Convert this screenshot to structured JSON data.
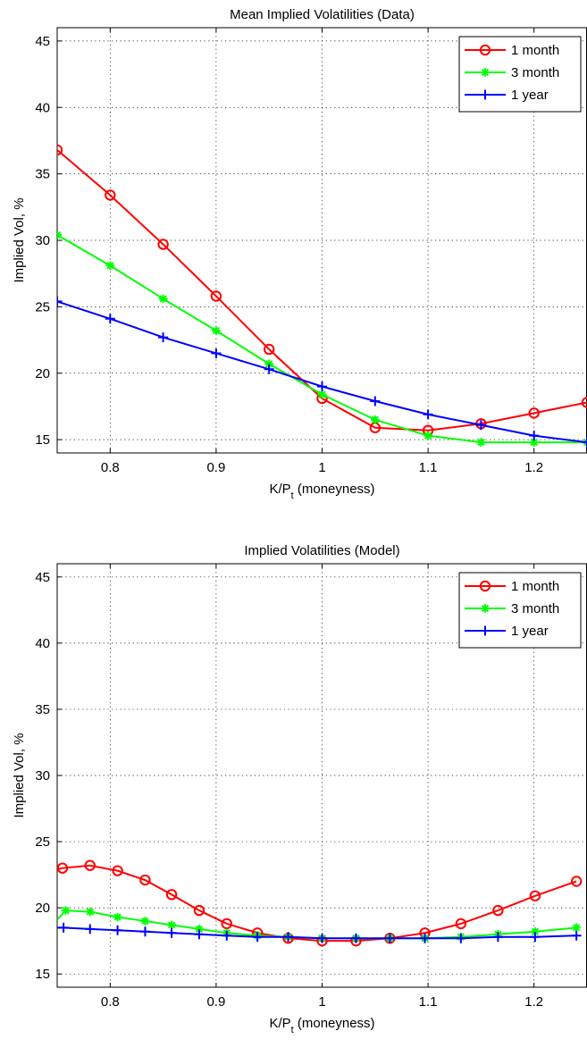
{
  "colors": {
    "one_month": "#ff0000",
    "three_month": "#00ff00",
    "one_year": "#0000ff",
    "grid": "#000000",
    "axes": "#000000"
  },
  "chart_data": [
    {
      "type": "line",
      "title": "Mean Implied Volatilities (Data)",
      "xlabel_main": "K/P",
      "xlabel_sub": "t",
      "xlabel_tail": " (moneyness)",
      "ylabel": "Implied Vol, %",
      "xlim": [
        0.75,
        1.25
      ],
      "ylim": [
        14,
        46
      ],
      "xticks": [
        0.8,
        0.9,
        1,
        1.1,
        1.2
      ],
      "xtick_labels": [
        "0.8",
        "0.9",
        "1",
        "1.1",
        "1.2"
      ],
      "yticks": [
        15,
        20,
        25,
        30,
        35,
        40,
        45
      ],
      "ytick_labels": [
        "15",
        "20",
        "25",
        "30",
        "35",
        "40",
        "45"
      ],
      "grid": true,
      "legend_position": "top-right",
      "series": [
        {
          "name": "1 month",
          "marker": "circle",
          "color_key": "one_month",
          "x": [
            0.75,
            0.8,
            0.85,
            0.9,
            0.95,
            1.0,
            1.05,
            1.1,
            1.15,
            1.2,
            1.25
          ],
          "y": [
            36.8,
            33.4,
            29.7,
            25.8,
            21.8,
            18.1,
            15.9,
            15.7,
            16.2,
            17.0,
            17.8
          ]
        },
        {
          "name": "3 month",
          "marker": "star",
          "color_key": "three_month",
          "x": [
            0.75,
            0.8,
            0.85,
            0.9,
            0.95,
            1.0,
            1.05,
            1.1,
            1.15,
            1.2,
            1.25
          ],
          "y": [
            30.4,
            28.1,
            25.6,
            23.2,
            20.7,
            18.4,
            16.5,
            15.3,
            14.8,
            14.8,
            14.8
          ]
        },
        {
          "name": "1 year",
          "marker": "plus",
          "color_key": "one_year",
          "x": [
            0.75,
            0.8,
            0.85,
            0.9,
            0.95,
            1.0,
            1.05,
            1.1,
            1.15,
            1.2,
            1.25
          ],
          "y": [
            25.4,
            24.1,
            22.7,
            21.5,
            20.3,
            19.0,
            17.9,
            16.9,
            16.1,
            15.3,
            14.8
          ]
        }
      ]
    },
    {
      "type": "line",
      "title": "Implied Volatilities (Model)",
      "xlabel_main": "K/P",
      "xlabel_sub": "t",
      "xlabel_tail": " (moneyness)",
      "ylabel": "Implied Vol, %",
      "xlim": [
        0.75,
        1.25
      ],
      "ylim": [
        14,
        46
      ],
      "xticks": [
        0.8,
        0.9,
        1,
        1.1,
        1.2
      ],
      "xtick_labels": [
        "0.8",
        "0.9",
        "1",
        "1.1",
        "1.2"
      ],
      "yticks": [
        15,
        20,
        25,
        30,
        35,
        40,
        45
      ],
      "ytick_labels": [
        "15",
        "20",
        "25",
        "30",
        "35",
        "40",
        "45"
      ],
      "grid": true,
      "legend_position": "top-right",
      "series": [
        {
          "name": "1 month",
          "marker": "circle",
          "color_key": "one_month",
          "x": [
            0.755,
            0.781,
            0.807,
            0.833,
            0.858,
            0.884,
            0.91,
            0.939,
            0.968,
            1.0,
            1.032,
            1.064,
            1.097,
            1.131,
            1.166,
            1.201,
            1.24
          ],
          "y": [
            23.0,
            23.2,
            22.8,
            22.1,
            21.0,
            19.8,
            18.8,
            18.1,
            17.7,
            17.5,
            17.5,
            17.7,
            18.1,
            18.8,
            19.8,
            20.9,
            22.0
          ],
          "pre_x": 0.75,
          "pre_y": 22.9
        },
        {
          "name": "3 month",
          "marker": "star",
          "color_key": "three_month",
          "x": [
            0.758,
            0.781,
            0.807,
            0.833,
            0.858,
            0.884,
            0.91,
            0.939,
            0.968,
            1.0,
            1.032,
            1.064,
            1.097,
            1.131,
            1.166,
            1.201,
            1.24
          ],
          "y": [
            19.8,
            19.7,
            19.3,
            19.0,
            18.7,
            18.4,
            18.1,
            17.9,
            17.8,
            17.7,
            17.7,
            17.7,
            17.7,
            17.8,
            18.0,
            18.2,
            18.5
          ],
          "pre_x": 0.75,
          "pre_y": 19.1
        },
        {
          "name": "1 year",
          "marker": "plus",
          "color_key": "one_year",
          "x": [
            0.756,
            0.781,
            0.807,
            0.833,
            0.858,
            0.884,
            0.91,
            0.939,
            0.968,
            1.0,
            1.032,
            1.064,
            1.097,
            1.131,
            1.166,
            1.201,
            1.24
          ],
          "y": [
            18.5,
            18.4,
            18.3,
            18.2,
            18.1,
            18.0,
            17.9,
            17.8,
            17.8,
            17.7,
            17.7,
            17.7,
            17.7,
            17.7,
            17.8,
            17.8,
            17.9
          ],
          "pre_x": 0.75,
          "pre_y": 18.5
        }
      ]
    }
  ]
}
